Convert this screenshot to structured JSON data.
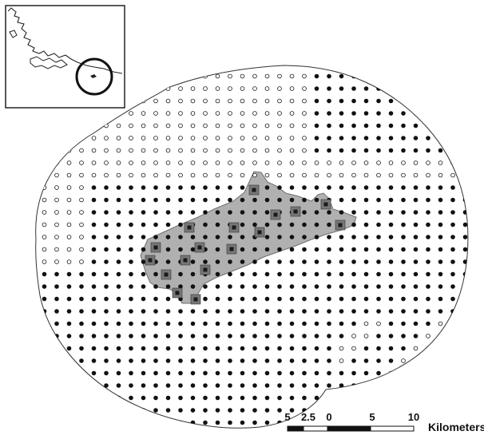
{
  "colors": {
    "background": "#ffffff",
    "outline": "#333333",
    "filled_point": "#111111",
    "open_point": "#ffffff",
    "study_area": "#b0b0b0",
    "sample_site_outer": "#777777",
    "sample_site_inner": "#1a1a1a"
  },
  "legend_icons": [
    "filled-circle-point-icon",
    "open-circle-point-icon",
    "square-sample-site-icon"
  ],
  "scale_bar": {
    "tick_labels": [
      "5",
      "2.5",
      "0",
      "5",
      "10"
    ],
    "tick_values_km": [
      -5,
      -2.5,
      0,
      5,
      10
    ],
    "unit": "Kilometers"
  }
}
